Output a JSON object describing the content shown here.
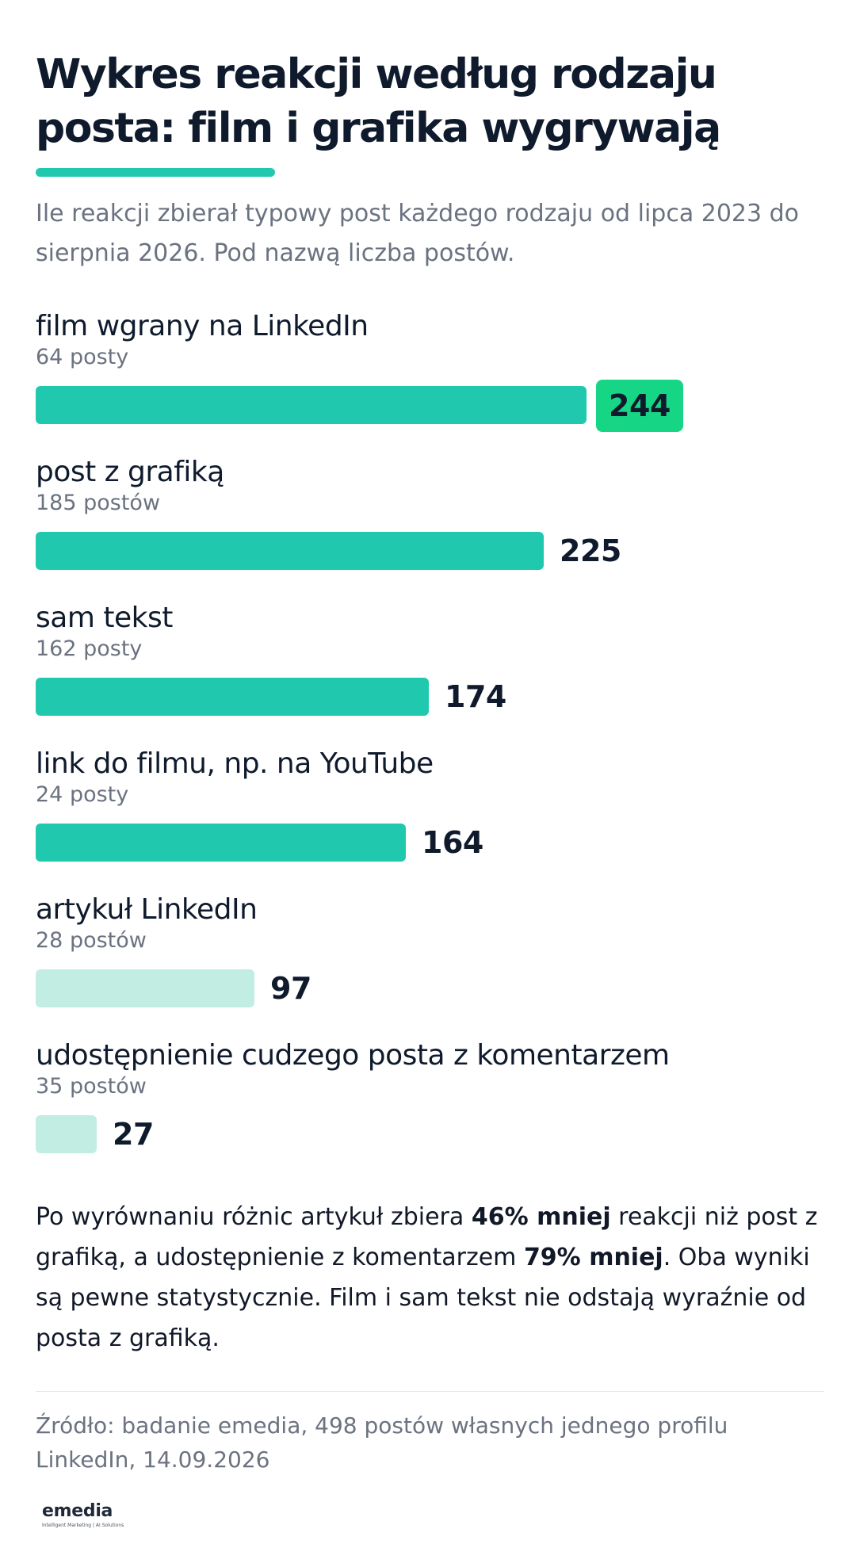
{
  "header": {
    "title": "Wykres reakcji według rodzaju posta: film i grafika wygrywają",
    "subtitle": "Ile reakcji zbierał typowy post każdego rodzaju od lipca 2023 do sierpnia 2026. Pod nazwą liczba postów."
  },
  "colors": {
    "accent": "#20c9ad",
    "bar_main": "#20c9ad",
    "bar_light": "#c2ede3",
    "highlight": "#16d685",
    "text_dark": "#0f1b2d",
    "text_muted": "#6b7280"
  },
  "chart_data": {
    "type": "bar",
    "orientation": "horizontal",
    "categories": [
      "film wgrany na LinkedIn",
      "post z grafiką",
      "sam tekst",
      "link do filmu, np. na YouTube",
      "artykuł LinkedIn",
      "udostępnienie cudzego posta z komentarzem"
    ],
    "post_counts": [
      "64 posty",
      "185 postów",
      "162 posty",
      "24 posty",
      "28 postów",
      "35 postów"
    ],
    "values": [
      244,
      225,
      174,
      164,
      97,
      27
    ],
    "value_labels": [
      "244",
      "225",
      "174",
      "164",
      "97",
      "27"
    ],
    "bar_shade": [
      "main",
      "main",
      "main",
      "main",
      "light",
      "light"
    ],
    "highlighted": [
      true,
      false,
      false,
      false,
      false,
      false
    ],
    "xlim": [
      0,
      244
    ]
  },
  "note": {
    "p1": "Po wyrównaniu różnic artykuł zbiera ",
    "b1": "46% mniej",
    "p2": " reakcji niż post z grafiką, a udostępnienie z komentarzem ",
    "b2": "79% mniej",
    "p3": ". Oba wyniki są pewne statystycznie. Film i sam tekst nie odstają wyraźnie od posta z grafiką."
  },
  "source": "Źródło: badanie emedia, 498 postów własnych jednego profilu LinkedIn, 14.09.2026",
  "logo": {
    "name": "emedia",
    "tagline": "Intelligent Marketing | AI Solutions"
  }
}
